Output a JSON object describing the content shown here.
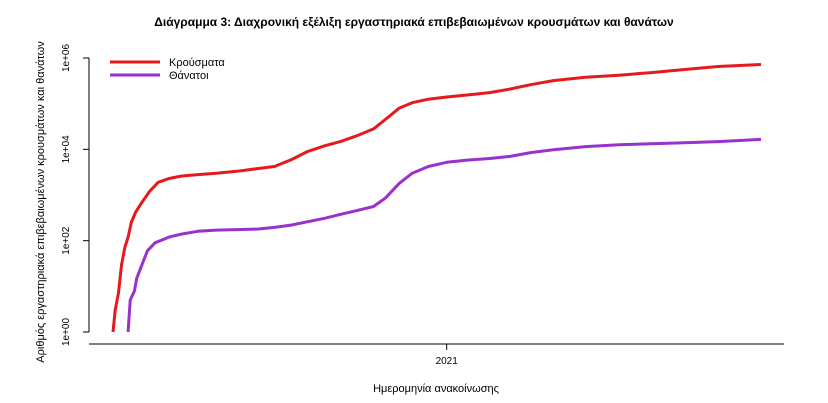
{
  "chart_data": {
    "type": "line",
    "title": "Διάγραμμα 3: Διαχρονική εξέλιξη εργαστηριακά επιβεβαιωμένων κρουσμάτων και θανάτων",
    "xlabel": "Ημερομηνία ανακοίνωσης",
    "ylabel": "Αριθμός εργαστηριακά επιβεβαιωμένων κρουσμάτων και θανάτων",
    "y_scale": "log10",
    "ylim": [
      1,
      1000000
    ],
    "y_ticks": [
      {
        "value": 1,
        "label": "1e+00"
      },
      {
        "value": 100,
        "label": "1e+02"
      },
      {
        "value": 10000,
        "label": "1e+04"
      },
      {
        "value": 1000000,
        "label": "1e+06"
      }
    ],
    "x_range": [
      "2020-02-26",
      "2021-10-20"
    ],
    "x_ticks": [
      {
        "value": "2021-01-01",
        "label": "2021"
      }
    ],
    "grid": false,
    "legend_position": "top-left",
    "series": [
      {
        "name": "Κρούσματα",
        "color": "#e41a1c",
        "points": [
          [
            "2020-02-26",
            1
          ],
          [
            "2020-02-28",
            3
          ],
          [
            "2020-03-02",
            7
          ],
          [
            "2020-03-05",
            30
          ],
          [
            "2020-03-08",
            70
          ],
          [
            "2020-03-11",
            120
          ],
          [
            "2020-03-14",
            250
          ],
          [
            "2020-03-18",
            420
          ],
          [
            "2020-03-24",
            700
          ],
          [
            "2020-03-31",
            1200
          ],
          [
            "2020-04-08",
            1900
          ],
          [
            "2020-04-18",
            2300
          ],
          [
            "2020-04-30",
            2600
          ],
          [
            "2020-05-15",
            2800
          ],
          [
            "2020-06-01",
            3000
          ],
          [
            "2020-06-20",
            3300
          ],
          [
            "2020-07-10",
            3800
          ],
          [
            "2020-07-25",
            4200
          ],
          [
            "2020-08-10",
            6000
          ],
          [
            "2020-08-25",
            9000
          ],
          [
            "2020-09-10",
            12000
          ],
          [
            "2020-09-25",
            15000
          ],
          [
            "2020-10-10",
            20000
          ],
          [
            "2020-10-25",
            28000
          ],
          [
            "2020-11-05",
            45000
          ],
          [
            "2020-11-18",
            80000
          ],
          [
            "2020-11-30",
            105000
          ],
          [
            "2020-12-15",
            125000
          ],
          [
            "2021-01-01",
            140000
          ],
          [
            "2021-01-20",
            155000
          ],
          [
            "2021-02-10",
            175000
          ],
          [
            "2021-03-01",
            210000
          ],
          [
            "2021-03-20",
            260000
          ],
          [
            "2021-04-10",
            320000
          ],
          [
            "2021-05-10",
            380000
          ],
          [
            "2021-06-10",
            420000
          ],
          [
            "2021-07-10",
            480000
          ],
          [
            "2021-08-10",
            560000
          ],
          [
            "2021-09-10",
            650000
          ],
          [
            "2021-10-20",
            720000
          ]
        ]
      },
      {
        "name": "Θάνατοι",
        "color": "#9932cc",
        "points": [
          [
            "2020-03-11",
            1
          ],
          [
            "2020-03-13",
            5
          ],
          [
            "2020-03-17",
            8
          ],
          [
            "2020-03-19",
            15
          ],
          [
            "2020-03-24",
            30
          ],
          [
            "2020-03-29",
            60
          ],
          [
            "2020-04-05",
            90
          ],
          [
            "2020-04-18",
            120
          ],
          [
            "2020-04-30",
            140
          ],
          [
            "2020-05-15",
            160
          ],
          [
            "2020-06-01",
            170
          ],
          [
            "2020-06-20",
            175
          ],
          [
            "2020-07-10",
            180
          ],
          [
            "2020-07-25",
            195
          ],
          [
            "2020-08-10",
            220
          ],
          [
            "2020-08-25",
            260
          ],
          [
            "2020-09-10",
            310
          ],
          [
            "2020-09-25",
            380
          ],
          [
            "2020-10-10",
            460
          ],
          [
            "2020-10-25",
            560
          ],
          [
            "2020-11-05",
            850
          ],
          [
            "2020-11-18",
            1800
          ],
          [
            "2020-11-30",
            3000
          ],
          [
            "2020-12-15",
            4200
          ],
          [
            "2021-01-01",
            5200
          ],
          [
            "2021-01-20",
            5800
          ],
          [
            "2021-02-10",
            6300
          ],
          [
            "2021-03-01",
            7000
          ],
          [
            "2021-03-20",
            8500
          ],
          [
            "2021-04-10",
            9800
          ],
          [
            "2021-05-10",
            11500
          ],
          [
            "2021-06-10",
            12600
          ],
          [
            "2021-07-10",
            13200
          ],
          [
            "2021-08-10",
            13900
          ],
          [
            "2021-09-10",
            14800
          ],
          [
            "2021-10-20",
            16500
          ]
        ]
      }
    ]
  }
}
